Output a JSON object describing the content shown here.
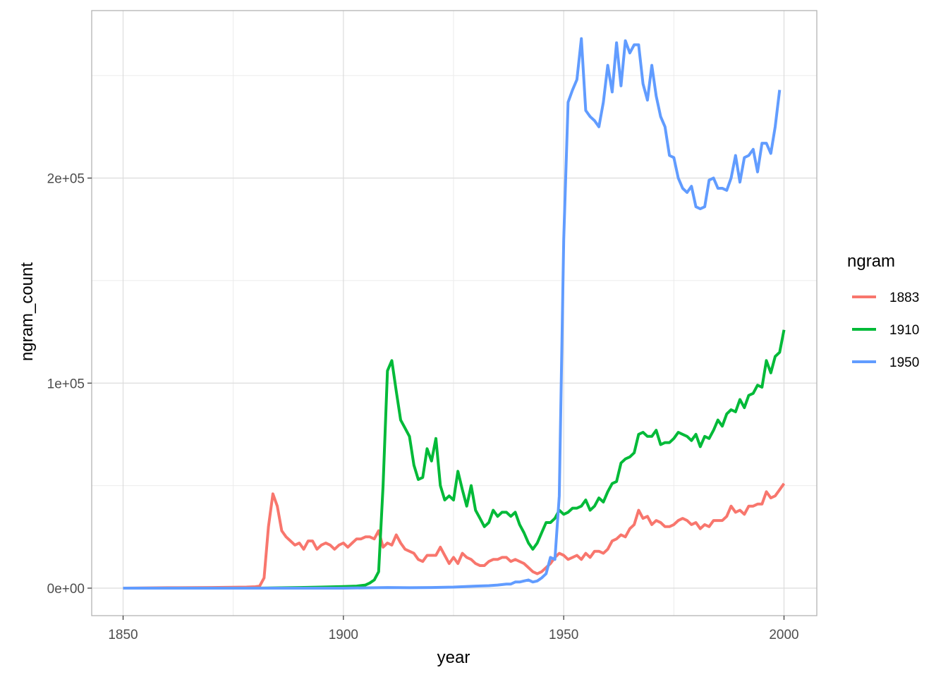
{
  "chart_data": {
    "type": "line",
    "xlabel": "year",
    "ylabel": "ngram_count",
    "xlim": [
      1850,
      2000
    ],
    "ylim": [
      0,
      270000
    ],
    "x_ticks": [
      1850,
      1900,
      1950,
      2000
    ],
    "x_tick_labels": [
      "1850",
      "1900",
      "1950",
      "2000"
    ],
    "y_ticks": [
      0,
      100000,
      200000
    ],
    "y_tick_labels": [
      "0e+00",
      "1e+05",
      "2e+05"
    ],
    "grid": true,
    "legend": {
      "title": "ngram",
      "position": "right"
    },
    "series": [
      {
        "name": "1883",
        "color": "#F8766D",
        "points": [
          [
            1850,
            0
          ],
          [
            1860,
            200
          ],
          [
            1870,
            300
          ],
          [
            1878,
            500
          ],
          [
            1880,
            700
          ],
          [
            1881,
            1000
          ],
          [
            1882,
            5000
          ],
          [
            1883,
            30000
          ],
          [
            1884,
            46000
          ],
          [
            1885,
            40000
          ],
          [
            1886,
            28000
          ],
          [
            1887,
            25000
          ],
          [
            1888,
            23000
          ],
          [
            1889,
            21000
          ],
          [
            1890,
            22000
          ],
          [
            1891,
            19000
          ],
          [
            1892,
            23000
          ],
          [
            1893,
            23000
          ],
          [
            1894,
            19000
          ],
          [
            1895,
            21000
          ],
          [
            1896,
            22000
          ],
          [
            1897,
            21000
          ],
          [
            1898,
            19000
          ],
          [
            1899,
            21000
          ],
          [
            1900,
            22000
          ],
          [
            1901,
            20000
          ],
          [
            1902,
            22000
          ],
          [
            1903,
            24000
          ],
          [
            1904,
            24000
          ],
          [
            1905,
            25000
          ],
          [
            1906,
            25000
          ],
          [
            1907,
            24000
          ],
          [
            1908,
            28000
          ],
          [
            1909,
            20000
          ],
          [
            1910,
            22000
          ],
          [
            1911,
            21000
          ],
          [
            1912,
            26000
          ],
          [
            1913,
            22000
          ],
          [
            1914,
            19000
          ],
          [
            1915,
            18000
          ],
          [
            1916,
            17000
          ],
          [
            1917,
            14000
          ],
          [
            1918,
            13000
          ],
          [
            1919,
            16000
          ],
          [
            1920,
            16000
          ],
          [
            1921,
            16000
          ],
          [
            1922,
            20000
          ],
          [
            1923,
            16000
          ],
          [
            1924,
            12000
          ],
          [
            1925,
            15000
          ],
          [
            1926,
            12000
          ],
          [
            1927,
            17000
          ],
          [
            1928,
            15000
          ],
          [
            1929,
            14000
          ],
          [
            1930,
            12000
          ],
          [
            1931,
            11000
          ],
          [
            1932,
            11000
          ],
          [
            1933,
            13000
          ],
          [
            1934,
            14000
          ],
          [
            1935,
            14000
          ],
          [
            1936,
            15000
          ],
          [
            1937,
            15000
          ],
          [
            1938,
            13000
          ],
          [
            1939,
            14000
          ],
          [
            1940,
            13000
          ],
          [
            1941,
            12000
          ],
          [
            1942,
            10000
          ],
          [
            1943,
            8000
          ],
          [
            1944,
            7000
          ],
          [
            1945,
            8000
          ],
          [
            1946,
            10000
          ],
          [
            1947,
            12000
          ],
          [
            1948,
            15000
          ],
          [
            1949,
            17000
          ],
          [
            1950,
            16000
          ],
          [
            1951,
            14000
          ],
          [
            1952,
            15000
          ],
          [
            1953,
            16000
          ],
          [
            1954,
            14000
          ],
          [
            1955,
            17000
          ],
          [
            1956,
            15000
          ],
          [
            1957,
            18000
          ],
          [
            1958,
            18000
          ],
          [
            1959,
            17000
          ],
          [
            1960,
            19000
          ],
          [
            1961,
            23000
          ],
          [
            1962,
            24000
          ],
          [
            1963,
            26000
          ],
          [
            1964,
            25000
          ],
          [
            1965,
            29000
          ],
          [
            1966,
            31000
          ],
          [
            1967,
            38000
          ],
          [
            1968,
            34000
          ],
          [
            1969,
            35000
          ],
          [
            1970,
            31000
          ],
          [
            1971,
            33000
          ],
          [
            1972,
            32000
          ],
          [
            1973,
            30000
          ],
          [
            1974,
            30000
          ],
          [
            1975,
            31000
          ],
          [
            1976,
            33000
          ],
          [
            1977,
            34000
          ],
          [
            1978,
            33000
          ],
          [
            1979,
            31000
          ],
          [
            1980,
            32000
          ],
          [
            1981,
            29000
          ],
          [
            1982,
            31000
          ],
          [
            1983,
            30000
          ],
          [
            1984,
            33000
          ],
          [
            1985,
            33000
          ],
          [
            1986,
            33000
          ],
          [
            1987,
            35000
          ],
          [
            1988,
            40000
          ],
          [
            1989,
            37000
          ],
          [
            1990,
            38000
          ],
          [
            1991,
            36000
          ],
          [
            1992,
            40000
          ],
          [
            1993,
            40000
          ],
          [
            1994,
            41000
          ],
          [
            1995,
            41000
          ],
          [
            1996,
            47000
          ],
          [
            1997,
            44000
          ],
          [
            1998,
            45000
          ],
          [
            1999,
            48000
          ],
          [
            2000,
            51000
          ]
        ]
      },
      {
        "name": "1910",
        "color": "#00BA38",
        "points": [
          [
            1850,
            0
          ],
          [
            1880,
            0
          ],
          [
            1890,
            300
          ],
          [
            1895,
            500
          ],
          [
            1900,
            800
          ],
          [
            1903,
            1000
          ],
          [
            1905,
            1500
          ],
          [
            1906,
            2500
          ],
          [
            1907,
            4000
          ],
          [
            1908,
            8000
          ],
          [
            1909,
            50000
          ],
          [
            1910,
            106000
          ],
          [
            1911,
            111000
          ],
          [
            1912,
            96000
          ],
          [
            1913,
            82000
          ],
          [
            1914,
            78000
          ],
          [
            1915,
            74000
          ],
          [
            1916,
            60000
          ],
          [
            1917,
            53000
          ],
          [
            1918,
            54000
          ],
          [
            1919,
            68000
          ],
          [
            1920,
            62000
          ],
          [
            1921,
            73000
          ],
          [
            1922,
            50000
          ],
          [
            1923,
            43000
          ],
          [
            1924,
            45000
          ],
          [
            1925,
            43000
          ],
          [
            1926,
            57000
          ],
          [
            1927,
            48000
          ],
          [
            1928,
            40000
          ],
          [
            1929,
            50000
          ],
          [
            1930,
            38000
          ],
          [
            1931,
            34000
          ],
          [
            1932,
            30000
          ],
          [
            1933,
            32000
          ],
          [
            1934,
            38000
          ],
          [
            1935,
            35000
          ],
          [
            1936,
            37000
          ],
          [
            1937,
            37000
          ],
          [
            1938,
            35000
          ],
          [
            1939,
            37000
          ],
          [
            1940,
            31000
          ],
          [
            1941,
            27000
          ],
          [
            1942,
            22000
          ],
          [
            1943,
            19000
          ],
          [
            1944,
            22000
          ],
          [
            1945,
            27000
          ],
          [
            1946,
            32000
          ],
          [
            1947,
            32000
          ],
          [
            1948,
            34000
          ],
          [
            1949,
            38000
          ],
          [
            1950,
            36000
          ],
          [
            1951,
            37000
          ],
          [
            1952,
            39000
          ],
          [
            1953,
            39000
          ],
          [
            1954,
            40000
          ],
          [
            1955,
            43000
          ],
          [
            1956,
            38000
          ],
          [
            1957,
            40000
          ],
          [
            1958,
            44000
          ],
          [
            1959,
            42000
          ],
          [
            1960,
            47000
          ],
          [
            1961,
            51000
          ],
          [
            1962,
            52000
          ],
          [
            1963,
            61000
          ],
          [
            1964,
            63000
          ],
          [
            1965,
            64000
          ],
          [
            1966,
            66000
          ],
          [
            1967,
            75000
          ],
          [
            1968,
            76000
          ],
          [
            1969,
            74000
          ],
          [
            1970,
            74000
          ],
          [
            1971,
            77000
          ],
          [
            1972,
            70000
          ],
          [
            1973,
            71000
          ],
          [
            1974,
            71000
          ],
          [
            1975,
            73000
          ],
          [
            1976,
            76000
          ],
          [
            1977,
            75000
          ],
          [
            1978,
            74000
          ],
          [
            1979,
            72000
          ],
          [
            1980,
            75000
          ],
          [
            1981,
            69000
          ],
          [
            1982,
            74000
          ],
          [
            1983,
            73000
          ],
          [
            1984,
            77000
          ],
          [
            1985,
            82000
          ],
          [
            1986,
            79000
          ],
          [
            1987,
            85000
          ],
          [
            1988,
            87000
          ],
          [
            1989,
            86000
          ],
          [
            1990,
            92000
          ],
          [
            1991,
            88000
          ],
          [
            1992,
            94000
          ],
          [
            1993,
            95000
          ],
          [
            1994,
            99000
          ],
          [
            1995,
            98000
          ],
          [
            1996,
            111000
          ],
          [
            1997,
            105000
          ],
          [
            1998,
            113000
          ],
          [
            1999,
            115000
          ],
          [
            2000,
            126000
          ]
        ]
      },
      {
        "name": "1950",
        "color": "#619CFF",
        "points": [
          [
            1850,
            0
          ],
          [
            1900,
            0
          ],
          [
            1910,
            300
          ],
          [
            1915,
            200
          ],
          [
            1920,
            300
          ],
          [
            1925,
            500
          ],
          [
            1930,
            1000
          ],
          [
            1933,
            1200
          ],
          [
            1935,
            1500
          ],
          [
            1937,
            2000
          ],
          [
            1938,
            2000
          ],
          [
            1939,
            3000
          ],
          [
            1940,
            3000
          ],
          [
            1941,
            3500
          ],
          [
            1942,
            4000
          ],
          [
            1943,
            3000
          ],
          [
            1944,
            3500
          ],
          [
            1945,
            5000
          ],
          [
            1946,
            7000
          ],
          [
            1947,
            15000
          ],
          [
            1948,
            14000
          ],
          [
            1949,
            45000
          ],
          [
            1950,
            170000
          ],
          [
            1951,
            237000
          ],
          [
            1952,
            243000
          ],
          [
            1953,
            248000
          ],
          [
            1954,
            268000
          ],
          [
            1955,
            233000
          ],
          [
            1956,
            230000
          ],
          [
            1957,
            228000
          ],
          [
            1958,
            225000
          ],
          [
            1959,
            237000
          ],
          [
            1960,
            255000
          ],
          [
            1961,
            242000
          ],
          [
            1962,
            266000
          ],
          [
            1963,
            245000
          ],
          [
            1964,
            267000
          ],
          [
            1965,
            261000
          ],
          [
            1966,
            265000
          ],
          [
            1967,
            265000
          ],
          [
            1968,
            246000
          ],
          [
            1969,
            238000
          ],
          [
            1970,
            255000
          ],
          [
            1971,
            240000
          ],
          [
            1972,
            230000
          ],
          [
            1973,
            225000
          ],
          [
            1974,
            211000
          ],
          [
            1975,
            210000
          ],
          [
            1976,
            200000
          ],
          [
            1977,
            195000
          ],
          [
            1978,
            193000
          ],
          [
            1979,
            196000
          ],
          [
            1980,
            186000
          ],
          [
            1981,
            185000
          ],
          [
            1982,
            186000
          ],
          [
            1983,
            199000
          ],
          [
            1984,
            200000
          ],
          [
            1985,
            195000
          ],
          [
            1986,
            195000
          ],
          [
            1987,
            194000
          ],
          [
            1988,
            200000
          ],
          [
            1989,
            211000
          ],
          [
            1990,
            198000
          ],
          [
            1991,
            210000
          ],
          [
            1992,
            211000
          ],
          [
            1993,
            214000
          ],
          [
            1994,
            203000
          ],
          [
            1995,
            217000
          ],
          [
            1996,
            217000
          ],
          [
            1997,
            212000
          ],
          [
            1998,
            225000
          ],
          [
            1999,
            243000
          ]
        ]
      }
    ]
  }
}
